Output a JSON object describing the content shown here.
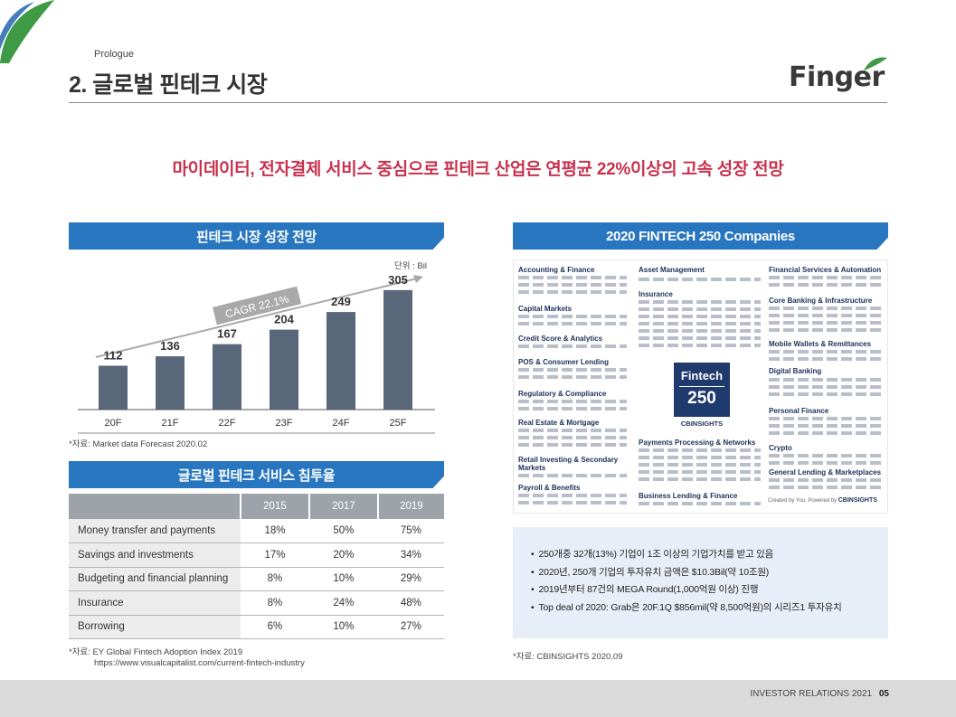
{
  "header": {
    "prologue": "Prologue",
    "title": "2. 글로벌 핀테크 시장",
    "logo_text": "Finger"
  },
  "headline": "마이데이터, 전자결제 서비스 중심으로 핀테크 산업은 연평균 22%이상의 고속 성장 전망",
  "market_section": {
    "title": "핀테크 시장 성장 전망",
    "unit": "단위 : Bil",
    "source": "*자료: Market data Forecast 2020.02"
  },
  "chart_data": {
    "type": "bar",
    "categories": [
      "20F",
      "21F",
      "22F",
      "23F",
      "24F",
      "25F"
    ],
    "values": [
      112,
      136,
      167,
      204,
      249,
      305
    ],
    "annotation": "CAGR 22.1%",
    "ylim": [
      0,
      330
    ],
    "grid": false,
    "colors": {
      "bar": "#59677a",
      "arrow": "#a9a9a9",
      "label_badge": "#a9a9a9"
    }
  },
  "penetration_section": {
    "title": "글로벌 핀테크 서비스 침투율",
    "columns": [
      "",
      "2015",
      "2017",
      "2019"
    ],
    "rows": [
      {
        "label": "Money transfer and payments",
        "values": [
          "18%",
          "50%",
          "75%"
        ]
      },
      {
        "label": "Savings and investments",
        "values": [
          "17%",
          "20%",
          "34%"
        ]
      },
      {
        "label": "Budgeting and financial planning",
        "values": [
          "8%",
          "10%",
          "29%"
        ]
      },
      {
        "label": "Insurance",
        "values": [
          "8%",
          "24%",
          "48%"
        ]
      },
      {
        "label": "Borrowing",
        "values": [
          "6%",
          "10%",
          "27%"
        ]
      }
    ],
    "source_line1": "*자료: EY Global Fintech Adoption Index 2019",
    "source_line2": "https://www.visualcapitalist.com/current-fintech-industry"
  },
  "fintech250_section": {
    "title": "2020 FINTECH 250 Companies",
    "categories_left": [
      "Accounting & Finance",
      "Capital Markets",
      "Credit Score & Analytics",
      "POS & Consumer Lending",
      "Regulatory & Compliance",
      "Real Estate & Mortgage",
      "Retail Investing & Secondary Markets",
      "Payroll & Benefits"
    ],
    "categories_middle": [
      "Asset Management",
      "Insurance",
      "Payments Processing & Networks",
      "Business Lending & Finance"
    ],
    "categories_right": [
      "Financial Services & Automation",
      "Core Banking & Infrastructure",
      "Mobile Wallets & Remittances",
      "Digital Banking",
      "Personal Finance",
      "Crypto",
      "General Lending & Marketplaces"
    ],
    "center_title": "Fintech",
    "center_number": "250",
    "center_logo": "CBINSIGHTS",
    "footer_text": "Created by You. Powered by",
    "footer_logo": "CBINSIGHTS",
    "bullets": [
      "250개중 32개(13%) 기업이 1조 이상의 기업가치를 받고 있음",
      "2020년, 250개 기업의 투자유치 금액은 $10.3Bil(약 10조원)",
      "2019년부터 87건의 MEGA Round(1,000억원 이상) 진행",
      "Top deal of 2020: Grab은 20F.1Q $856mil(약 8,500억원)의 시리즈1 투자유치"
    ],
    "source": "*자료: CBINSIGHTS 2020.09"
  },
  "footer": {
    "text": "INVESTOR RELATIONS 2021",
    "page": "05"
  }
}
